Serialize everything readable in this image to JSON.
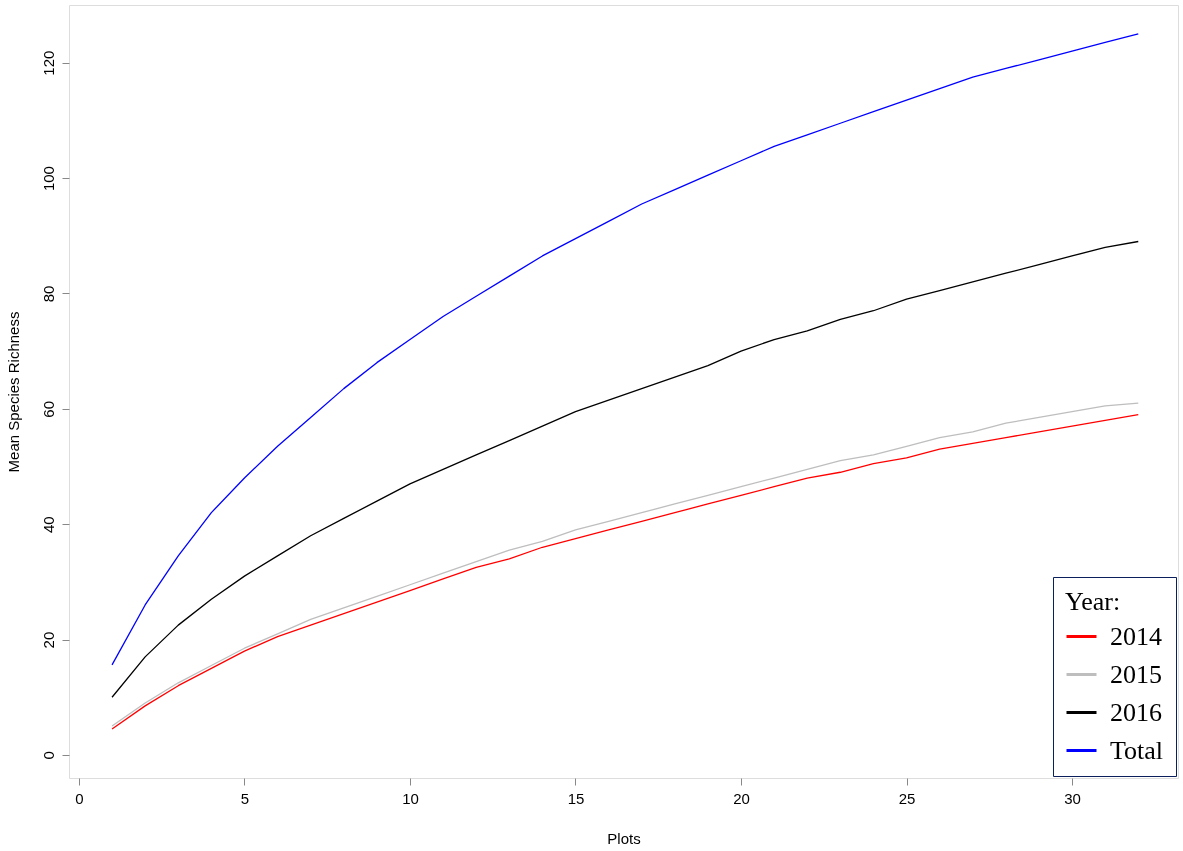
{
  "chart_data": {
    "type": "line",
    "xlabel": "Plots",
    "ylabel": "Mean Species Richness",
    "legend_title": "Year:",
    "legend": "bottom right",
    "grid": false,
    "line_style": "solid",
    "marker": "none",
    "x": [
      1,
      2,
      3,
      4,
      5,
      6,
      7,
      8,
      9,
      10,
      11,
      12,
      13,
      14,
      15,
      16,
      17,
      18,
      19,
      20,
      21,
      22,
      23,
      24,
      25,
      26,
      27,
      28,
      29,
      30,
      31,
      32
    ],
    "xlim": [
      -0.3,
      33.2
    ],
    "xticks": [
      0,
      5,
      10,
      15,
      20,
      25,
      30
    ],
    "ylim": [
      -4,
      130
    ],
    "yticks": [
      0,
      20,
      40,
      60,
      80,
      100,
      120
    ],
    "series": [
      {
        "name": "2014",
        "color": "#ff0000",
        "values": [
          4.5,
          8.5,
          12,
          15,
          18,
          20.5,
          22.5,
          24.5,
          26.5,
          28.5,
          30.5,
          32.5,
          34,
          36,
          37.5,
          39,
          40.5,
          42,
          43.5,
          45,
          46.5,
          48,
          49,
          50.5,
          51.5,
          53,
          54,
          55,
          56,
          57,
          58,
          59
        ]
      },
      {
        "name": "2015",
        "color": "#bebebe",
        "values": [
          5,
          9,
          12.5,
          15.5,
          18.5,
          21,
          23.5,
          25.5,
          27.5,
          29.5,
          31.5,
          33.5,
          35.5,
          37,
          39,
          40.5,
          42,
          43.5,
          45,
          46.5,
          48,
          49.5,
          51,
          52,
          53.5,
          55,
          56,
          57.5,
          58.5,
          59.5,
          60.5,
          61
        ]
      },
      {
        "name": "2016",
        "color": "#000000",
        "values": [
          10,
          17,
          22.5,
          27,
          31,
          34.5,
          38,
          41,
          44,
          47,
          49.5,
          52,
          54.5,
          57,
          59.5,
          61.5,
          63.5,
          65.5,
          67.5,
          70,
          72,
          73.5,
          75.5,
          77,
          79,
          80.5,
          82,
          83.5,
          85,
          86.5,
          88,
          89
        ]
      },
      {
        "name": "Total",
        "color": "#0000ff",
        "values": [
          15.6,
          26,
          34.5,
          42,
          48,
          53.5,
          58.5,
          63.5,
          68,
          72,
          76,
          79.5,
          83,
          86.5,
          89.5,
          92.5,
          95.5,
          98,
          100.5,
          103,
          105.5,
          107.5,
          109.5,
          111.5,
          113.5,
          115.5,
          117.5,
          119,
          120.5,
          122,
          123.5,
          125
        ]
      }
    ]
  }
}
